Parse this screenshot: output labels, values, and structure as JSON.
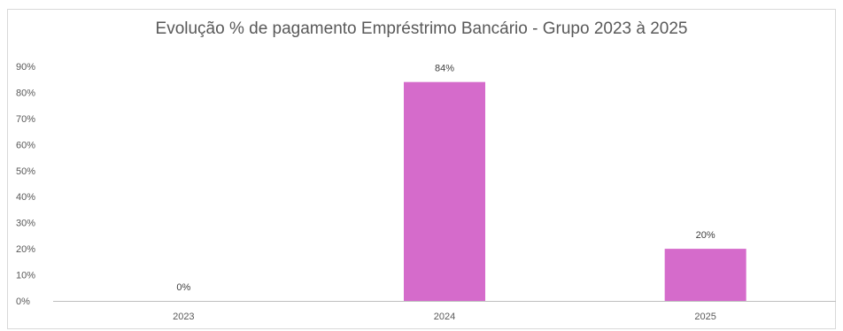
{
  "chart_data": {
    "type": "bar",
    "title": "Evolução % de pagamento Empréstrimo Bancário - Grupo 2023 à 2025",
    "categories": [
      "2023",
      "2024",
      "2025"
    ],
    "values": [
      0,
      84,
      20
    ],
    "data_labels": [
      "0%",
      "84%",
      "20%"
    ],
    "y_ticks": [
      "0%",
      "10%",
      "20%",
      "30%",
      "40%",
      "50%",
      "60%",
      "70%",
      "80%",
      "90%"
    ],
    "ylim": [
      0,
      90
    ],
    "xlabel": "",
    "ylabel": "",
    "grid": false,
    "legend": false,
    "bar_color": "#d56bcb",
    "axis_color": "#bfbfbf",
    "text_color": "#595959"
  }
}
